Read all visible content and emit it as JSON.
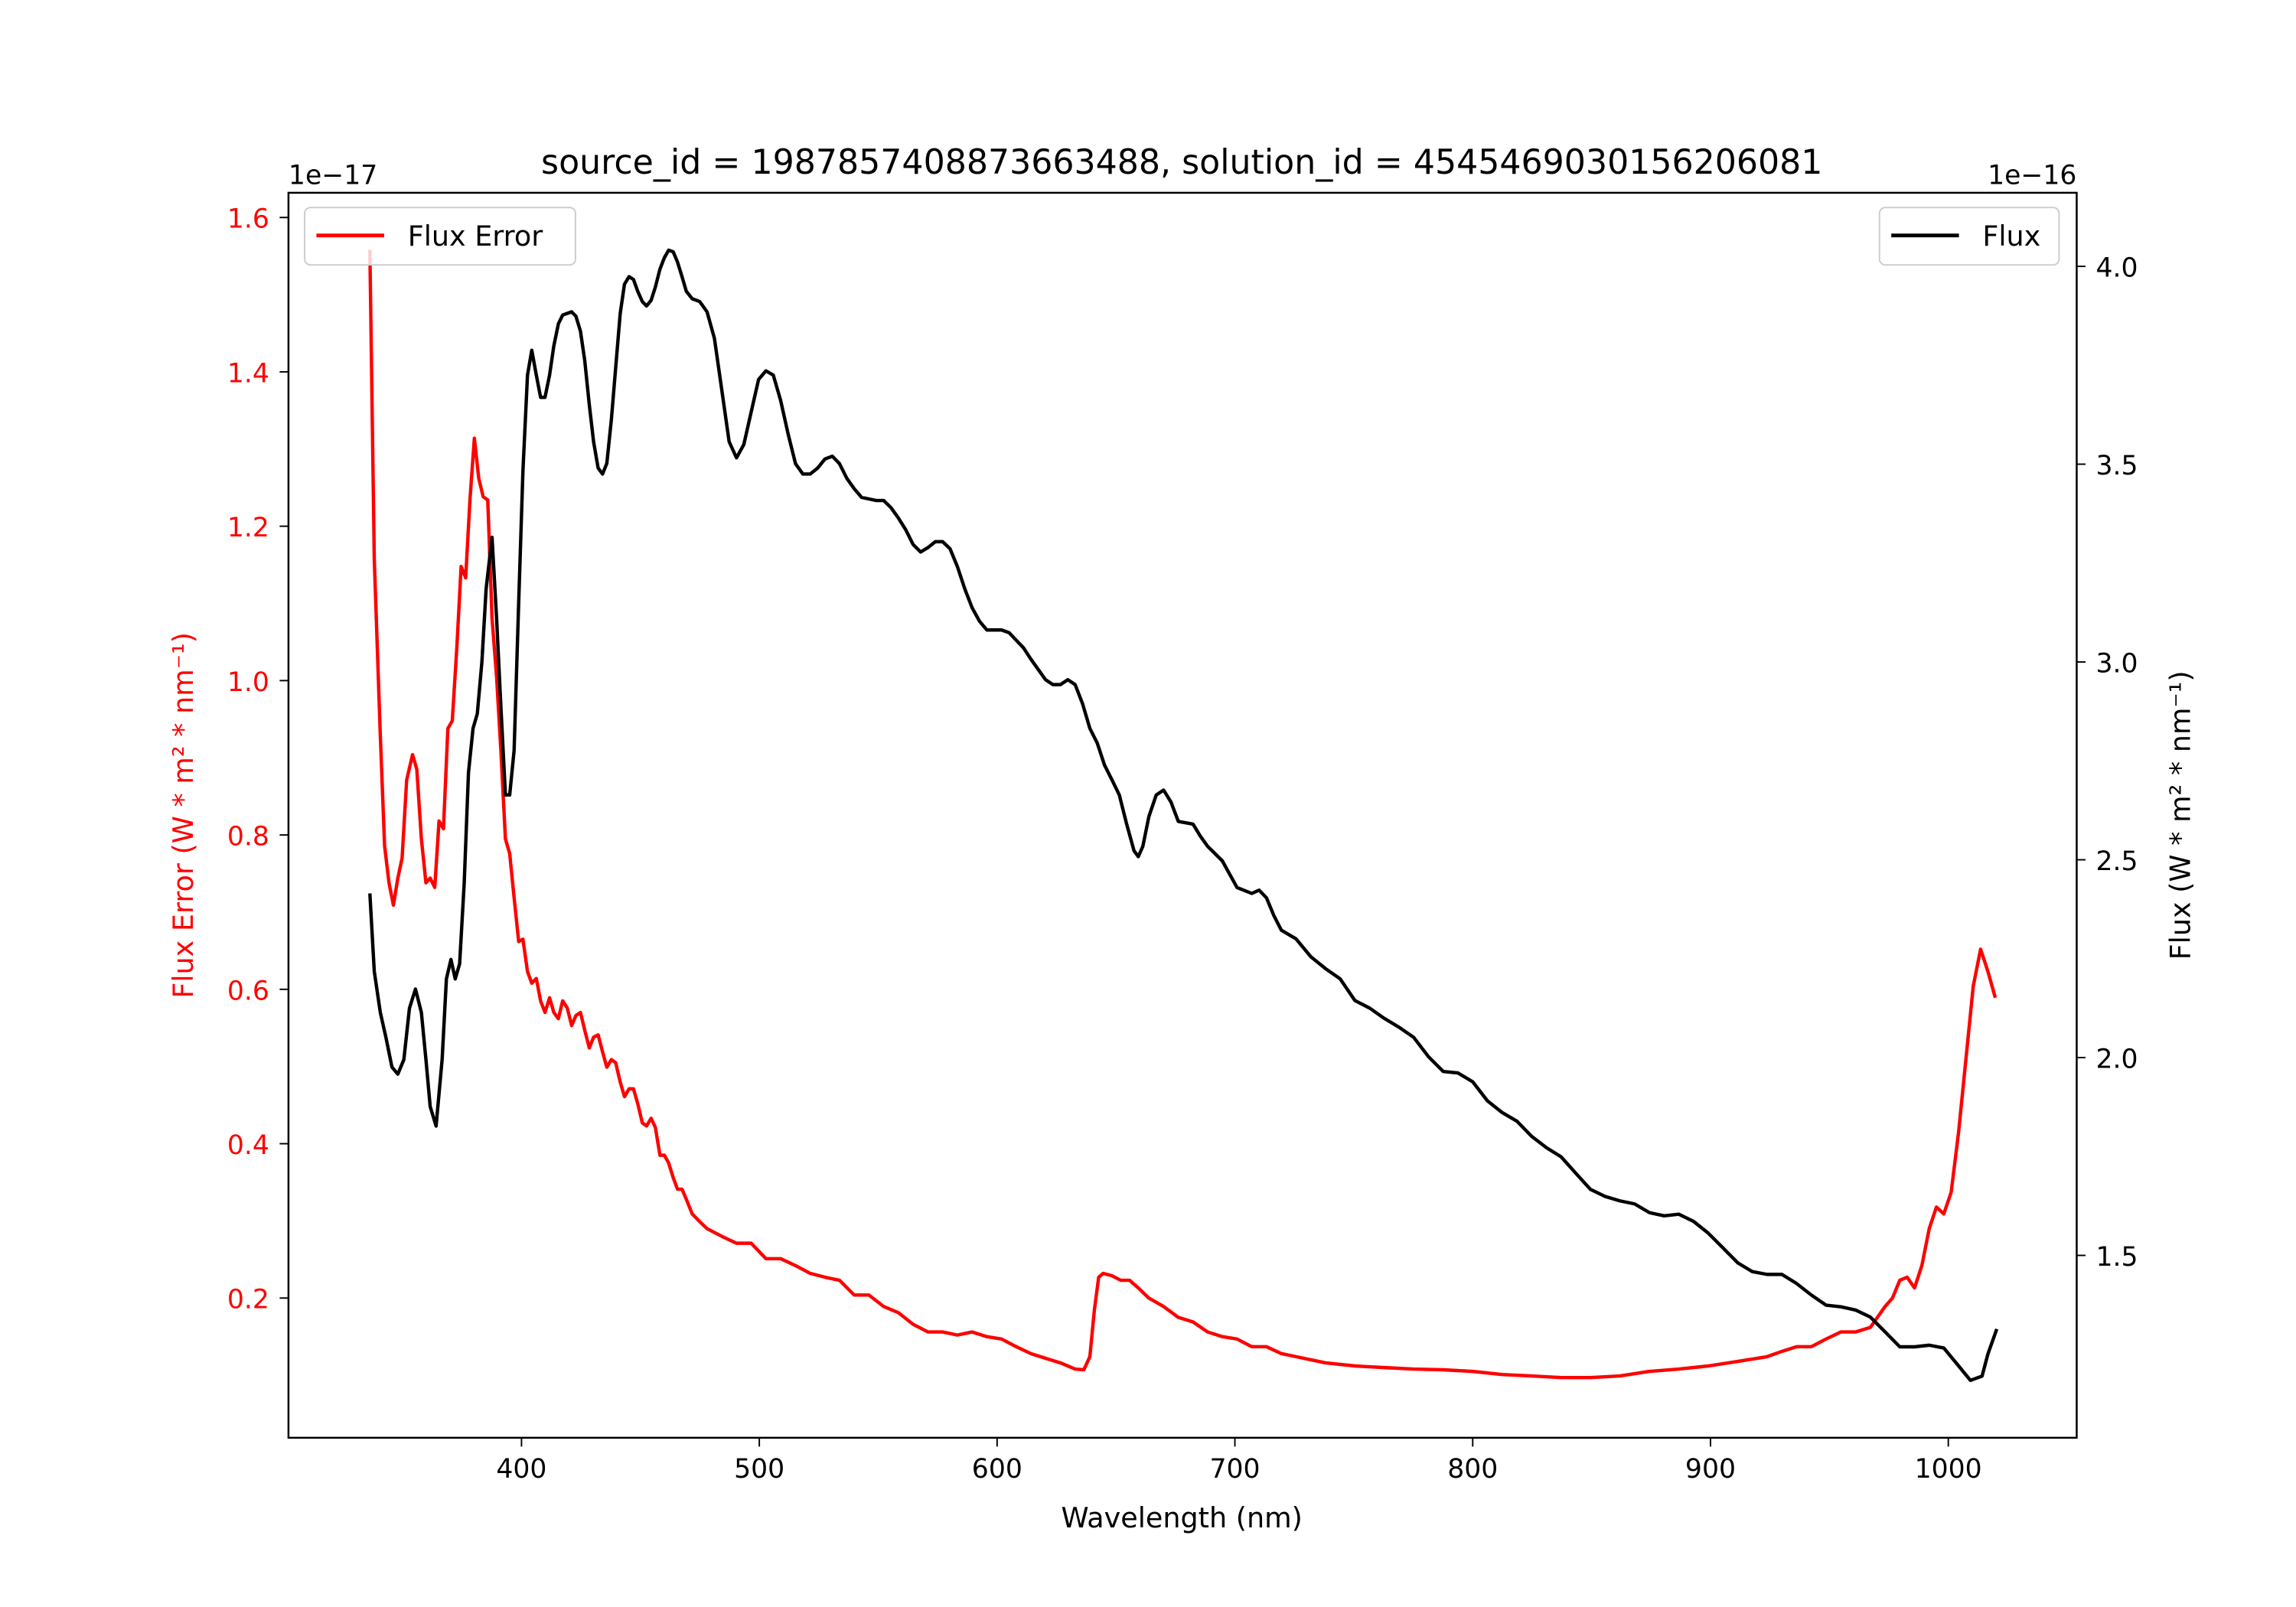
{
  "chart_data": {
    "type": "line",
    "title": "source_id = 1987857408873663488, solution_id = 4545469030156206081",
    "xlabel": "Wavelength (nm)",
    "ylabel_left": "Flux Error (W * m² * nm⁻¹)",
    "ylabel_right": "Flux (W * m² * nm⁻¹)",
    "offset_left": "1e−17",
    "offset_right": "1e−16",
    "xlim": [
      302,
      1054
    ],
    "ylim_left": [
      0.019,
      1.632
    ],
    "ylim_right": [
      1.039,
      4.186
    ],
    "xticks": [
      400,
      500,
      600,
      700,
      800,
      900,
      1000
    ],
    "yticks_left": [
      "0.2",
      "0.4",
      "0.6",
      "0.8",
      "1.0",
      "1.2",
      "1.4",
      "1.6"
    ],
    "yticks_right": [
      "1.5",
      "2.0",
      "2.5",
      "3.0",
      "3.5",
      "4.0"
    ],
    "grid": false,
    "legend_left": {
      "label": "Flux Error",
      "placement": "upper-left"
    },
    "legend_right": {
      "label": "Flux",
      "placement": "upper-right"
    },
    "colors": {
      "flux_error": "#ff0000",
      "flux": "#000000"
    },
    "series": [
      {
        "name": "Flux Error",
        "axis": "left",
        "x": [
          336.2,
          338.1,
          340.6,
          342.4,
          344.3,
          346.1,
          348.0,
          349.8,
          351.7,
          354.2,
          356.0,
          357.9,
          359.8,
          361.6,
          363.5,
          365.3,
          367.2,
          369.0,
          370.9,
          372.8,
          374.6,
          376.5,
          378.3,
          380.2,
          382.0,
          383.9,
          385.8,
          387.6,
          389.5,
          391.3,
          393.2,
          395.0,
          396.9,
          398.8,
          400.6,
          402.5,
          404.3,
          406.2,
          408.0,
          409.9,
          411.8,
          413.6,
          415.5,
          417.3,
          419.2,
          421.1,
          422.9,
          424.8,
          426.6,
          428.5,
          430.3,
          432.2,
          434.1,
          435.9,
          437.8,
          439.6,
          441.5,
          443.3,
          445.2,
          447.1,
          448.9,
          450.8,
          452.6,
          454.5,
          456.3,
          458.2,
          460.1,
          461.9,
          463.8,
          465.6,
          467.5,
          469.3,
          471.8,
          474.9,
          478.0,
          484.2,
          490.4,
          496.6,
          502.8,
          509.0,
          515.2,
          521.4,
          527.6,
          533.7,
          539.9,
          546.1,
          552.3,
          558.5,
          564.7,
          570.9,
          577.1,
          583.3,
          589.5,
          595.7,
          601.9,
          608.0,
          614.2,
          620.4,
          626.6,
          632.8,
          636.5,
          639.0,
          640.9,
          642.7,
          644.6,
          648.3,
          652.0,
          655.7,
          659.4,
          663.8,
          670.0,
          676.2,
          682.4,
          688.5,
          694.7,
          700.9,
          707.1,
          713.3,
          719.5,
          725.7,
          738.1,
          750.5,
          762.8,
          775.2,
          787.6,
          800.0,
          812.4,
          824.8,
          837.2,
          849.5,
          861.9,
          874.3,
          886.7,
          899.1,
          911.5,
          923.8,
          930.0,
          936.2,
          942.4,
          948.6,
          954.8,
          961.0,
          967.2,
          973.4,
          976.5,
          979.6,
          982.7,
          985.8,
          988.9,
          992.0,
          995.0,
          998.1,
          1001.2,
          1004.3,
          1007.4,
          1010.5,
          1013.6,
          1016.7,
          1019.8
        ],
        "y": [
          1.558,
          1.157,
          0.929,
          0.786,
          0.738,
          0.709,
          0.744,
          0.77,
          0.871,
          0.904,
          0.885,
          0.795,
          0.738,
          0.744,
          0.732,
          0.818,
          0.808,
          0.938,
          0.948,
          1.043,
          1.148,
          1.133,
          1.234,
          1.314,
          1.262,
          1.238,
          1.234,
          1.081,
          1.005,
          0.91,
          0.795,
          0.776,
          0.719,
          0.662,
          0.665,
          0.623,
          0.608,
          0.614,
          0.585,
          0.57,
          0.589,
          0.57,
          0.562,
          0.585,
          0.576,
          0.553,
          0.566,
          0.57,
          0.547,
          0.524,
          0.538,
          0.541,
          0.519,
          0.499,
          0.509,
          0.505,
          0.48,
          0.461,
          0.471,
          0.471,
          0.452,
          0.427,
          0.423,
          0.433,
          0.421,
          0.385,
          0.385,
          0.375,
          0.356,
          0.341,
          0.341,
          0.328,
          0.309,
          0.299,
          0.29,
          0.28,
          0.271,
          0.271,
          0.251,
          0.251,
          0.242,
          0.232,
          0.227,
          0.223,
          0.204,
          0.204,
          0.189,
          0.181,
          0.166,
          0.156,
          0.156,
          0.152,
          0.156,
          0.15,
          0.147,
          0.137,
          0.128,
          0.122,
          0.116,
          0.108,
          0.107,
          0.124,
          0.185,
          0.227,
          0.232,
          0.229,
          0.223,
          0.223,
          0.213,
          0.2,
          0.189,
          0.175,
          0.169,
          0.156,
          0.15,
          0.147,
          0.137,
          0.137,
          0.128,
          0.124,
          0.116,
          0.112,
          0.11,
          0.108,
          0.107,
          0.105,
          0.101,
          0.099,
          0.097,
          0.097,
          0.099,
          0.105,
          0.108,
          0.112,
          0.118,
          0.124,
          0.131,
          0.137,
          0.137,
          0.147,
          0.156,
          0.156,
          0.162,
          0.189,
          0.2,
          0.223,
          0.227,
          0.213,
          0.242,
          0.29,
          0.318,
          0.309,
          0.337,
          0.414,
          0.509,
          0.604,
          0.652,
          0.623,
          0.589
        ]
      },
      {
        "name": "Flux",
        "axis": "right",
        "x": [
          336.2,
          338.1,
          340.6,
          343.0,
          345.5,
          348.0,
          350.5,
          352.9,
          355.4,
          357.9,
          359.8,
          361.6,
          364.1,
          366.6,
          368.4,
          370.3,
          372.1,
          374.0,
          375.9,
          377.7,
          379.6,
          381.4,
          383.3,
          385.1,
          387.6,
          389.5,
          391.3,
          393.2,
          395.0,
          396.9,
          398.8,
          400.6,
          402.5,
          404.3,
          406.2,
          408.0,
          409.9,
          411.8,
          413.6,
          415.5,
          417.3,
          421.1,
          422.9,
          424.8,
          426.6,
          428.5,
          430.3,
          432.2,
          434.1,
          435.9,
          437.8,
          439.6,
          441.5,
          443.3,
          445.2,
          447.1,
          448.9,
          450.8,
          452.6,
          454.5,
          456.3,
          458.2,
          460.1,
          461.9,
          463.8,
          465.6,
          467.5,
          469.3,
          471.8,
          474.9,
          478.0,
          481.1,
          484.2,
          487.3,
          490.4,
          493.5,
          496.6,
          499.7,
          502.8,
          505.9,
          509.0,
          512.1,
          515.2,
          518.3,
          521.4,
          524.5,
          527.6,
          530.7,
          533.7,
          536.8,
          539.9,
          543.0,
          549.2,
          552.3,
          555.4,
          558.5,
          561.6,
          564.7,
          567.8,
          570.9,
          574.0,
          577.1,
          580.2,
          583.3,
          586.4,
          589.5,
          592.6,
          595.7,
          601.9,
          605.0,
          608.0,
          611.1,
          614.2,
          617.3,
          620.4,
          623.5,
          626.6,
          629.7,
          632.8,
          635.9,
          639.0,
          642.1,
          645.2,
          648.3,
          651.4,
          654.5,
          657.6,
          659.4,
          661.3,
          663.8,
          666.9,
          670.0,
          673.1,
          676.2,
          682.4,
          685.4,
          688.5,
          694.7,
          700.9,
          707.1,
          710.2,
          713.3,
          716.4,
          719.5,
          725.7,
          731.9,
          738.1,
          744.3,
          750.5,
          756.7,
          762.8,
          769.0,
          775.2,
          781.4,
          787.6,
          793.8,
          800.0,
          806.2,
          812.4,
          818.6,
          824.8,
          831.0,
          837.2,
          843.3,
          849.5,
          855.7,
          861.9,
          868.1,
          874.3,
          880.5,
          886.7,
          892.9,
          899.1,
          905.3,
          911.5,
          917.6,
          923.8,
          930.0,
          936.2,
          942.4,
          948.6,
          954.8,
          961.0,
          967.2,
          973.4,
          979.6,
          985.8,
          992.0,
          998.1,
          1004.3,
          1009.3,
          1014.2,
          1016.7,
          1020.4
        ],
        "y": [
          2.415,
          2.218,
          2.114,
          2.051,
          1.976,
          1.958,
          1.995,
          2.125,
          2.173,
          2.114,
          1.995,
          1.876,
          1.827,
          1.995,
          2.199,
          2.248,
          2.199,
          2.237,
          2.441,
          2.72,
          2.832,
          2.869,
          2.999,
          3.185,
          3.315,
          3.111,
          2.888,
          2.664,
          2.664,
          2.776,
          3.148,
          3.483,
          3.725,
          3.788,
          3.725,
          3.669,
          3.669,
          3.725,
          3.799,
          3.855,
          3.877,
          3.885,
          3.874,
          3.836,
          3.762,
          3.65,
          3.557,
          3.49,
          3.475,
          3.502,
          3.613,
          3.743,
          3.881,
          3.955,
          3.974,
          3.967,
          3.937,
          3.911,
          3.9,
          3.914,
          3.948,
          3.993,
          4.022,
          4.041,
          4.037,
          4.011,
          3.974,
          3.937,
          3.918,
          3.911,
          3.885,
          3.818,
          3.688,
          3.557,
          3.516,
          3.55,
          3.632,
          3.714,
          3.736,
          3.725,
          3.661,
          3.576,
          3.501,
          3.475,
          3.475,
          3.49,
          3.513,
          3.52,
          3.501,
          3.464,
          3.438,
          3.416,
          3.408,
          3.408,
          3.39,
          3.364,
          3.334,
          3.297,
          3.278,
          3.289,
          3.304,
          3.304,
          3.286,
          3.241,
          3.185,
          3.137,
          3.103,
          3.081,
          3.081,
          3.074,
          3.055,
          3.036,
          3.007,
          2.981,
          2.955,
          2.943,
          2.943,
          2.955,
          2.943,
          2.895,
          2.832,
          2.795,
          2.739,
          2.702,
          2.664,
          2.59,
          2.523,
          2.508,
          2.534,
          2.609,
          2.664,
          2.676,
          2.646,
          2.597,
          2.59,
          2.56,
          2.534,
          2.497,
          2.43,
          2.415,
          2.423,
          2.404,
          2.359,
          2.322,
          2.3,
          2.255,
          2.225,
          2.199,
          2.144,
          2.125,
          2.099,
          2.077,
          2.051,
          2.002,
          1.965,
          1.961,
          1.939,
          1.891,
          1.861,
          1.839,
          1.801,
          1.772,
          1.749,
          1.708,
          1.667,
          1.649,
          1.638,
          1.63,
          1.608,
          1.6,
          1.604,
          1.586,
          1.556,
          1.519,
          1.481,
          1.459,
          1.452,
          1.452,
          1.429,
          1.4,
          1.374,
          1.37,
          1.362,
          1.344,
          1.307,
          1.269,
          1.269,
          1.273,
          1.266,
          1.221,
          1.184,
          1.195,
          1.251,
          1.314
        ]
      }
    ]
  }
}
